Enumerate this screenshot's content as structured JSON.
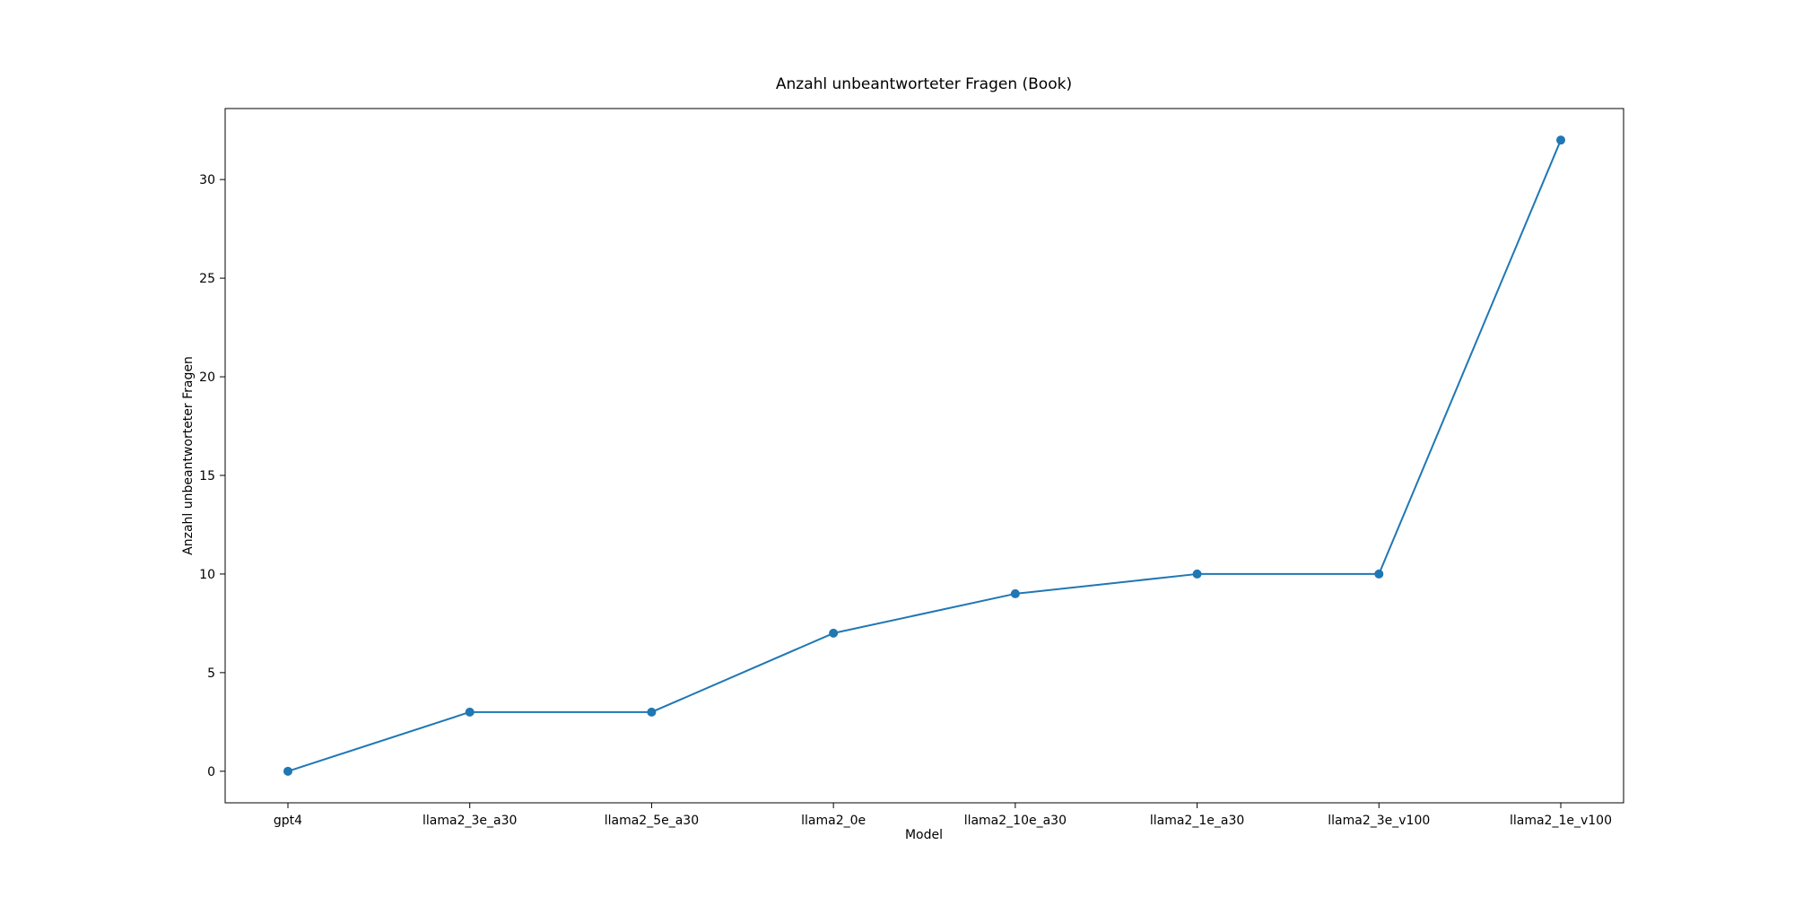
{
  "chart_data": {
    "type": "line",
    "title": "Anzahl unbeantworteter Fragen (Book)",
    "xlabel": "Model",
    "ylabel": "Anzahl unbeantworteter Fragen",
    "categories": [
      "gpt4",
      "llama2_3e_a30",
      "llama2_5e_a30",
      "llama2_0e",
      "llama2_10e_a30",
      "llama2_1e_a30",
      "llama2_3e_v100",
      "llama2_1e_v100"
    ],
    "values": [
      0,
      3,
      3,
      7,
      9,
      10,
      10,
      32
    ],
    "ylim": [
      -1.6,
      33.6
    ],
    "yticks": [
      0,
      5,
      10,
      15,
      20,
      25,
      30
    ],
    "grid": false,
    "marker": "circle",
    "line_color": "#1f77b4"
  }
}
